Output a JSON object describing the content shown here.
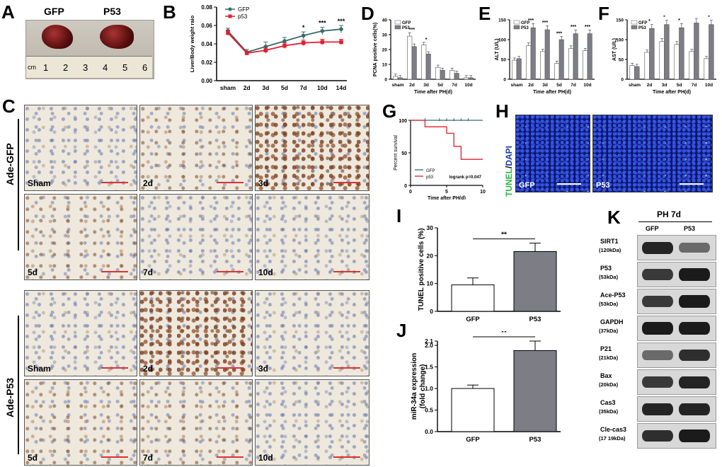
{
  "panels": {
    "A": "A",
    "B": "B",
    "C": "C",
    "D": "D",
    "E": "E",
    "F": "F",
    "G": "G",
    "H": "H",
    "I": "I",
    "J": "J",
    "K": "K"
  },
  "panelA": {
    "labels": [
      "GFP",
      "P53"
    ],
    "ruler_unit": "cm",
    "ruler_ticks": [
      "1",
      "2",
      "3",
      "4",
      "5",
      "6"
    ]
  },
  "panelC": {
    "groups": [
      "Ade-GFP",
      "Ade-P53"
    ],
    "tiles": [
      "Sham",
      "2d",
      "3d",
      "5d",
      "7d",
      "10d"
    ]
  },
  "panelH": {
    "ylabel_tunel": "TUNEL",
    "ylabel_sep": "/",
    "ylabel_dapi": "DAPI",
    "tiles": [
      "GFP",
      "P53"
    ]
  },
  "panelK": {
    "title": "PH 7d",
    "lanes": [
      "GFP",
      "P53"
    ],
    "blots": [
      {
        "name": "SIRT1",
        "kda": "(120kDa)",
        "gfp": 0.9,
        "p53": 0.55
      },
      {
        "name": "P53",
        "kda": "(53kDa)",
        "gfp": 0.8,
        "p53": 0.95
      },
      {
        "name": "Ace-P53",
        "kda": "(53kDa)",
        "gfp": 0.8,
        "p53": 0.95
      },
      {
        "name": "GAPDH",
        "kda": "(37kDa)",
        "gfp": 0.95,
        "p53": 0.95
      },
      {
        "name": "P21",
        "kda": "(21kDa)",
        "gfp": 0.55,
        "p53": 0.85
      },
      {
        "name": "Bax",
        "kda": "(20kDa)",
        "gfp": 0.8,
        "p53": 0.9
      },
      {
        "name": "Cas3",
        "kda": "(35kDa)",
        "gfp": 0.9,
        "p53": 0.9
      },
      {
        "name": "Cle-cas3",
        "kda": "(17 19kDa)",
        "gfp": 0.85,
        "p53": 0.95
      }
    ]
  },
  "chart_data": [
    {
      "id": "B",
      "type": "line",
      "categories": [
        "sham",
        "2d",
        "3d",
        "5d",
        "7d",
        "10d",
        "14d"
      ],
      "ylabel": "Liver/Body weight raio",
      "ylim": [
        0,
        0.08
      ],
      "yticks": [
        "0.00",
        "0.02",
        "0.04",
        "0.06",
        "0.08"
      ],
      "legend_position": "top-left",
      "series": [
        {
          "name": "GFP",
          "color": "#3a6b6b",
          "values": [
            0.054,
            0.031,
            0.037,
            0.043,
            0.049,
            0.054,
            0.056
          ],
          "err": [
            0.003,
            0.003,
            0.005,
            0.004,
            0.004,
            0.004,
            0.004
          ]
        },
        {
          "name": "p53",
          "color": "#e0202f",
          "values": [
            0.052,
            0.03,
            0.033,
            0.038,
            0.041,
            0.042,
            0.042
          ],
          "err": [
            0.003,
            0.002,
            0.003,
            0.003,
            0.003,
            0.003,
            0.003
          ]
        }
      ],
      "annotations": [
        "",
        "",
        "",
        "",
        "*",
        "***",
        "***"
      ]
    },
    {
      "id": "D",
      "type": "bar",
      "categories": [
        "sham",
        "2d",
        "3d",
        "5d",
        "7d",
        "10d"
      ],
      "xlabel": "Time after PH(d)",
      "ylabel": "PCNA positive cells(%)",
      "ylim": [
        0,
        40
      ],
      "yticks": [
        "0",
        "10",
        "20",
        "30",
        "40"
      ],
      "series": [
        {
          "name": "GFP",
          "values": [
            2,
            29,
            23,
            8,
            6,
            1
          ]
        },
        {
          "name": "P53",
          "values": [
            1,
            22,
            17,
            6,
            4,
            1
          ]
        }
      ],
      "annotations": [
        "",
        "***",
        "*",
        "",
        "",
        ""
      ]
    },
    {
      "id": "E",
      "type": "bar",
      "categories": [
        "sham",
        "2d",
        "3d",
        "5d",
        "7d",
        "10d"
      ],
      "xlabel": "Time after PH(d)",
      "ylabel": "ALT (U/L)",
      "ylim": [
        0,
        150
      ],
      "yticks": [
        "0",
        "50",
        "100",
        "150"
      ],
      "series": [
        {
          "name": "GFP",
          "values": [
            48,
            85,
            70,
            40,
            78,
            72
          ]
        },
        {
          "name": "P53",
          "values": [
            52,
            130,
            125,
            100,
            115,
            115
          ]
        }
      ],
      "annotations": [
        "",
        "***",
        "***",
        "***",
        "***",
        "***"
      ]
    },
    {
      "id": "F",
      "type": "bar",
      "categories": [
        "sham",
        "2d",
        "3d",
        "5d",
        "7d",
        "10d"
      ],
      "xlabel": "Time after PH(d)",
      "ylabel": "AST (U/L)",
      "ylim": [
        0,
        150
      ],
      "yticks": [
        "0",
        "50",
        "100",
        "150"
      ],
      "series": [
        {
          "name": "GFP",
          "values": [
            35,
            68,
            95,
            88,
            70,
            52
          ]
        },
        {
          "name": "P53",
          "values": [
            32,
            128,
            138,
            130,
            142,
            138
          ]
        }
      ],
      "annotations": [
        "",
        "*",
        "*",
        "*",
        "*",
        "*"
      ]
    },
    {
      "id": "G",
      "type": "line",
      "xlabel": "Time after PH(d)",
      "ylabel": "Percent survival",
      "xlim": [
        0,
        10
      ],
      "ylim": [
        0,
        100
      ],
      "xticks": [
        "0",
        "5",
        "10"
      ],
      "yticks": [
        "0",
        "50",
        "100"
      ],
      "series": [
        {
          "name": "GFP",
          "color": "#3a6b6b",
          "x": [
            0,
            10
          ],
          "y": [
            100,
            100
          ]
        },
        {
          "name": "p53",
          "color": "#e0202f",
          "x": [
            0,
            2,
            2,
            5,
            5,
            6,
            6,
            7,
            7,
            10
          ],
          "y": [
            100,
            100,
            90,
            90,
            80,
            80,
            60,
            60,
            40,
            40
          ]
        }
      ],
      "annotation": "logrank p=0.047"
    },
    {
      "id": "I",
      "type": "bar",
      "categories": [
        "GFP",
        "P53"
      ],
      "ylabel": "TUNEL positive cells (%)",
      "ylim": [
        0,
        30
      ],
      "yticks": [
        "0",
        "10",
        "20",
        "30"
      ],
      "values": [
        9.5,
        21.5
      ],
      "err": [
        2.5,
        3.0
      ],
      "colors": [
        "#ffffff",
        "#7d7d85"
      ],
      "annotation": "**"
    },
    {
      "id": "J",
      "type": "bar",
      "categories": [
        "GFP",
        "P53"
      ],
      "ylabel": "miR-34a expression (fold change)",
      "ylabel_lines": [
        "miR-34a expression",
        "(fold change)"
      ],
      "ylim": [
        0,
        2.1
      ],
      "yticks": [
        "0.0",
        "0.5",
        "1.0",
        "1.5",
        "2.0",
        "2.1"
      ],
      "values": [
        1.0,
        1.88
      ],
      "err": [
        0.08,
        0.22
      ],
      "colors": [
        "#ffffff",
        "#7d7d85"
      ],
      "annotation": "**"
    }
  ]
}
